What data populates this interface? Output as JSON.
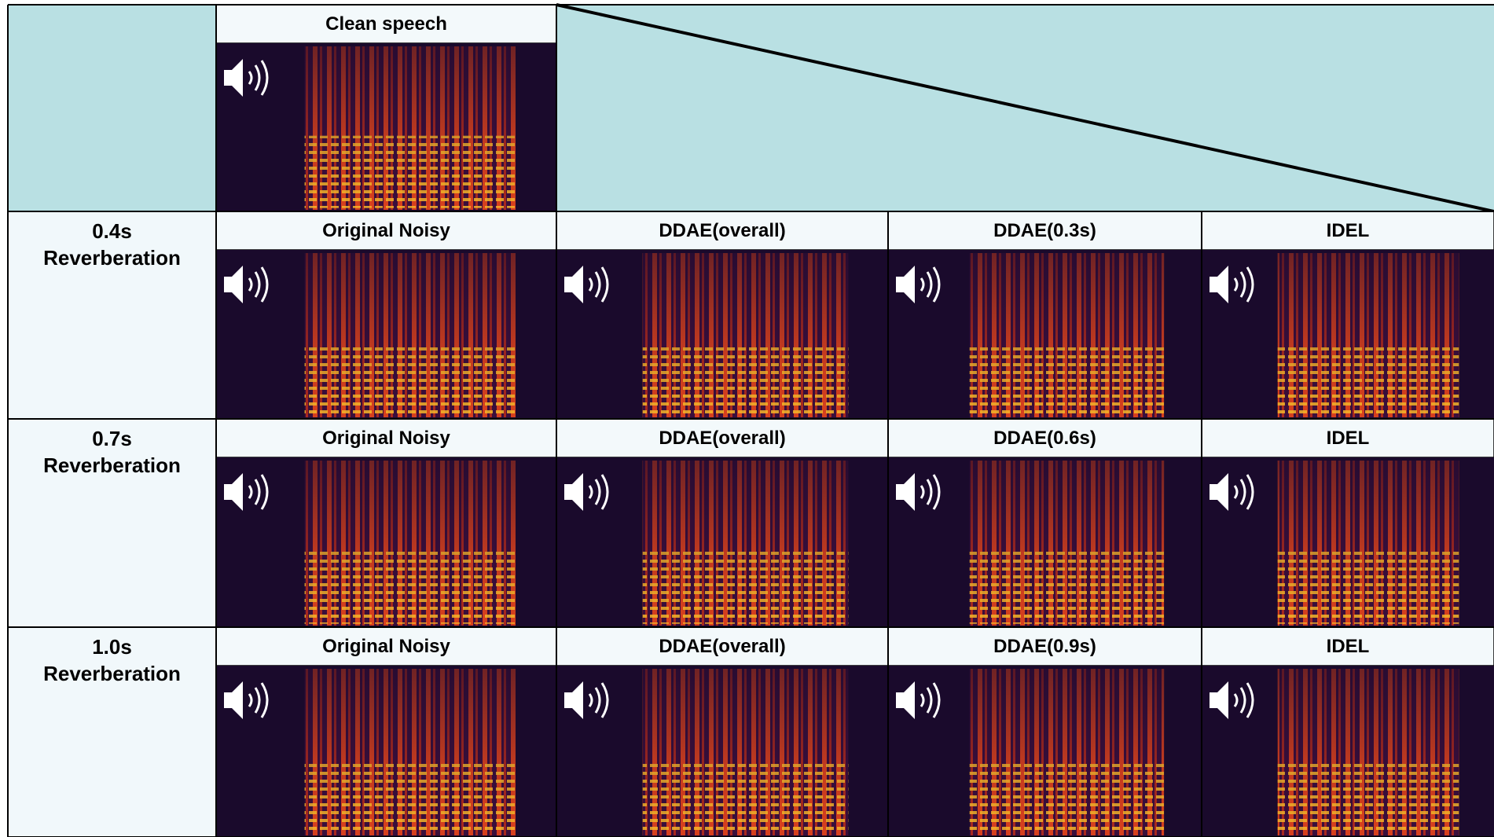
{
  "header": {
    "clean_title": "Clean speech"
  },
  "rows": [
    {
      "label": [
        "0.4s",
        "Reverberation"
      ],
      "cells": [
        "Original Noisy",
        "DDAE(overall)",
        "DDAE(0.3s)",
        "IDEL"
      ]
    },
    {
      "label": [
        "0.7s",
        "Reverberation"
      ],
      "cells": [
        "Original Noisy",
        "DDAE(overall)",
        "DDAE(0.6s)",
        "IDEL"
      ]
    },
    {
      "label": [
        "1.0s",
        "Reverberation"
      ],
      "cells": [
        "Original Noisy",
        "DDAE(overall)",
        "DDAE(0.9s)",
        "IDEL"
      ]
    }
  ]
}
